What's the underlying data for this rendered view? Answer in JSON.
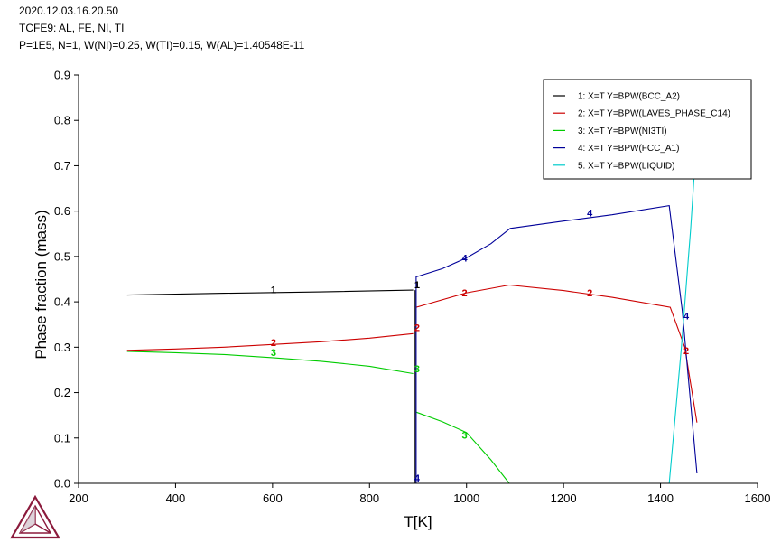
{
  "header": {
    "line1": "2020.12.03.16.20.50",
    "line2": "TCFE9: AL, FE, NI, TI",
    "line3": "P=1E5, N=1, W(NI)=0.25, W(TI)=0.15, W(AL)=1.40548E-11"
  },
  "chart_data": {
    "type": "line",
    "title": "",
    "xlabel": "T[K]",
    "ylabel": "Phase fraction (mass)",
    "xlim": [
      200,
      1600
    ],
    "ylim": [
      0,
      0.9
    ],
    "xticks": [
      "200",
      "400",
      "600",
      "800",
      "1000",
      "1200",
      "1400",
      "1600"
    ],
    "yticks": [
      "0.0",
      "0.1",
      "0.2",
      "0.3",
      "0.4",
      "0.5",
      "0.6",
      "0.7",
      "0.8",
      "0.9"
    ],
    "legend_position": "top-right",
    "series": [
      {
        "id": "1",
        "name": "1:  X=T  Y=BPW(BCC_A2)",
        "color": "#000000",
        "segments": [
          [
            [
              300,
              0.415
            ],
            [
              500,
              0.419
            ],
            [
              700,
              0.422
            ],
            [
              890,
              0.426
            ]
          ],
          [
            [
              894,
              0.426
            ],
            [
              894,
              0.0
            ]
          ]
        ],
        "labels": [
          {
            "text": "1",
            "x": 602,
            "y": 0.427
          },
          {
            "text": "1",
            "x": 898,
            "y": 0.438
          }
        ]
      },
      {
        "id": "2",
        "name": "2:  X=T  Y=BPW(LAVES_PHASE_C14)",
        "color": "#cc0000",
        "segments": [
          [
            [
              300,
              0.293
            ],
            [
              400,
              0.296
            ],
            [
              500,
              0.3
            ],
            [
              600,
              0.306
            ],
            [
              700,
              0.312
            ],
            [
              800,
              0.32
            ],
            [
              890,
              0.33
            ]
          ],
          [
            [
              896,
              0.388
            ],
            [
              1000,
              0.42
            ],
            [
              1088,
              0.437
            ],
            [
              1200,
              0.425
            ],
            [
              1300,
              0.41
            ],
            [
              1420,
              0.388
            ],
            [
              1450,
              0.3
            ],
            [
              1475,
              0.134
            ]
          ]
        ],
        "labels": [
          {
            "text": "2",
            "x": 602,
            "y": 0.311
          },
          {
            "text": "2",
            "x": 898,
            "y": 0.343
          },
          {
            "text": "2",
            "x": 996,
            "y": 0.42
          },
          {
            "text": "2",
            "x": 1254,
            "y": 0.42
          },
          {
            "text": "2",
            "x": 1453,
            "y": 0.293
          }
        ]
      },
      {
        "id": "3",
        "name": "3:  X=T  Y=BPW(NI3TI)",
        "color": "#00cc00",
        "segments": [
          [
            [
              300,
              0.291
            ],
            [
              400,
              0.288
            ],
            [
              500,
              0.284
            ],
            [
              600,
              0.277
            ],
            [
              700,
              0.269
            ],
            [
              800,
              0.258
            ],
            [
              890,
              0.242
            ]
          ],
          [
            [
              896,
              0.157
            ],
            [
              950,
              0.136
            ],
            [
              1000,
              0.112
            ],
            [
              1050,
              0.052
            ],
            [
              1088,
              0.0
            ]
          ]
        ],
        "labels": [
          {
            "text": "3",
            "x": 602,
            "y": 0.289
          },
          {
            "text": "3",
            "x": 898,
            "y": 0.253
          },
          {
            "text": "3",
            "x": 996,
            "y": 0.107
          }
        ]
      },
      {
        "id": "4",
        "name": "4:  X=T  Y=BPW(FCC_A1)",
        "color": "#000099",
        "segments": [
          [
            [
              896,
              0.0
            ],
            [
              896,
              0.455
            ],
            [
              950,
              0.473
            ],
            [
              1000,
              0.497
            ],
            [
              1050,
              0.528
            ],
            [
              1090,
              0.562
            ],
            [
              1200,
              0.578
            ],
            [
              1300,
              0.592
            ],
            [
              1418,
              0.612
            ],
            [
              1445,
              0.38
            ],
            [
              1475,
              0.022
            ]
          ]
        ],
        "labels": [
          {
            "text": "4",
            "x": 898,
            "y": 0.012
          },
          {
            "text": "4",
            "x": 996,
            "y": 0.497
          },
          {
            "text": "4",
            "x": 1254,
            "y": 0.596
          },
          {
            "text": "4",
            "x": 1453,
            "y": 0.369
          }
        ]
      },
      {
        "id": "5",
        "name": "5:  X=T  Y=BPW(LIQUID)",
        "color": "#00cccc",
        "segments": [
          [
            [
              1418,
              0.0
            ],
            [
              1443,
              0.3
            ],
            [
              1462,
              0.56
            ],
            [
              1470,
              0.69
            ]
          ]
        ],
        "labels": []
      }
    ]
  }
}
